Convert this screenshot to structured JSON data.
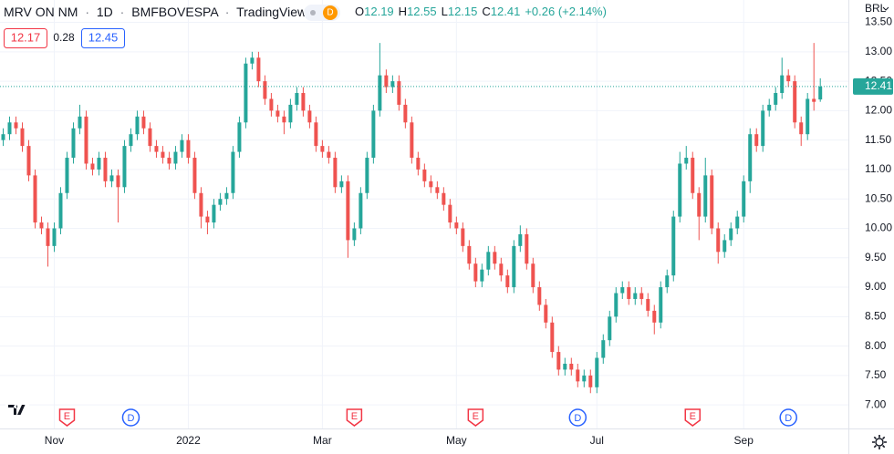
{
  "header": {
    "title_parts": [
      "MRV ON NM",
      "1D",
      "BMFBOVESPA",
      "TradingView"
    ],
    "separator": "·",
    "badge": "D",
    "change": "+0.26 (+2.14%)"
  },
  "quote": {
    "bid": 12.17,
    "spread": 0.28,
    "ask": 12.45
  },
  "chart_data": {
    "type": "candlestick",
    "currency": "BRL",
    "ohlc_letters": [
      "O",
      "H",
      "L",
      "C"
    ],
    "up_color": "#26a69a",
    "down_color": "#ef5350",
    "grid": true,
    "last_price_line": true,
    "open": [
      11.5,
      11.6,
      11.8,
      11.7,
      11.4,
      10.9,
      10.1,
      10.0,
      9.7,
      10.0,
      10.6,
      11.2,
      11.7,
      11.9,
      11.1,
      11.0,
      11.2,
      10.8,
      10.9,
      10.7,
      11.4,
      11.6,
      11.9,
      11.7,
      11.4,
      11.3,
      11.2,
      11.1,
      11.3,
      11.5,
      11.2,
      10.6,
      10.2,
      10.1,
      10.4,
      10.5,
      10.6,
      11.3,
      11.8,
      12.8,
      12.9,
      12.5,
      12.2,
      12.0,
      11.9,
      11.8,
      12.1,
      12.3,
      12.0,
      11.8,
      11.4,
      11.3,
      11.2,
      10.7,
      10.8,
      9.8,
      10.0,
      10.6,
      11.2,
      12.0,
      12.6,
      12.4,
      12.5,
      12.1,
      11.8,
      11.2,
      11.0,
      10.8,
      10.7,
      10.6,
      10.4,
      10.1,
      10.0,
      9.7,
      9.4,
      9.1,
      9.3,
      9.6,
      9.4,
      9.2,
      9.0,
      9.7,
      9.9,
      9.4,
      9.0,
      8.7,
      8.4,
      7.9,
      7.6,
      7.7,
      7.6,
      7.4,
      7.5,
      7.3,
      7.8,
      8.1,
      8.5,
      8.9,
      9.0,
      8.8,
      8.9,
      8.8,
      8.6,
      8.4,
      9.0,
      9.2,
      10.2,
      11.1,
      11.2,
      10.6,
      10.2,
      10.9,
      10.0,
      9.6,
      9.8,
      10.0,
      10.2,
      10.8,
      11.6,
      11.4,
      12.0,
      12.1,
      12.3,
      12.6,
      12.5,
      11.8,
      11.6,
      12.2,
      12.19
    ],
    "high": [
      11.7,
      11.9,
      11.9,
      11.8,
      11.5,
      11.0,
      10.2,
      10.1,
      10.1,
      10.7,
      11.3,
      11.8,
      12.1,
      12.0,
      11.2,
      11.3,
      11.3,
      11.0,
      11.0,
      11.5,
      11.7,
      12.0,
      12.0,
      11.8,
      11.5,
      11.4,
      11.3,
      11.4,
      11.6,
      11.6,
      11.3,
      10.7,
      10.3,
      10.5,
      10.6,
      10.7,
      11.4,
      11.9,
      12.9,
      13.0,
      13.0,
      12.6,
      12.3,
      12.1,
      12.0,
      12.2,
      12.4,
      12.4,
      12.1,
      11.9,
      11.5,
      11.4,
      11.3,
      10.9,
      10.9,
      10.1,
      10.7,
      11.3,
      12.1,
      13.15,
      12.7,
      12.6,
      12.6,
      12.2,
      11.9,
      11.3,
      11.1,
      10.9,
      10.8,
      10.7,
      10.5,
      10.2,
      10.1,
      9.8,
      9.5,
      9.4,
      9.7,
      9.7,
      9.5,
      9.3,
      9.8,
      10.05,
      10.0,
      9.5,
      9.1,
      8.8,
      8.5,
      8.0,
      7.8,
      7.8,
      7.7,
      7.6,
      7.6,
      7.9,
      8.2,
      8.6,
      9.0,
      9.1,
      9.1,
      9.0,
      9.0,
      8.9,
      8.7,
      9.1,
      9.3,
      10.3,
      11.3,
      11.4,
      11.3,
      10.7,
      11.2,
      11.0,
      10.1,
      9.9,
      10.1,
      10.3,
      10.9,
      11.7,
      11.7,
      12.1,
      12.2,
      12.4,
      12.9,
      12.7,
      12.6,
      11.9,
      12.3,
      13.15,
      12.55
    ],
    "low": [
      11.4,
      11.5,
      11.6,
      11.3,
      10.8,
      10.0,
      9.9,
      9.35,
      9.6,
      9.9,
      10.5,
      11.1,
      11.6,
      11.0,
      10.9,
      10.9,
      10.7,
      10.7,
      10.1,
      10.6,
      11.3,
      11.5,
      11.6,
      11.3,
      11.2,
      11.1,
      11.0,
      11.0,
      11.2,
      11.1,
      10.5,
      10.0,
      9.9,
      10.0,
      10.3,
      10.4,
      10.5,
      11.2,
      11.7,
      12.7,
      12.4,
      12.1,
      11.9,
      11.8,
      11.6,
      11.7,
      12.0,
      11.9,
      11.7,
      11.3,
      11.2,
      11.1,
      10.6,
      10.6,
      9.5,
      9.7,
      9.9,
      10.5,
      11.1,
      11.9,
      12.3,
      12.3,
      12.0,
      11.7,
      11.1,
      10.9,
      10.7,
      10.6,
      10.5,
      10.3,
      10.0,
      9.9,
      9.6,
      9.3,
      9.0,
      9.0,
      9.2,
      9.3,
      9.1,
      8.9,
      8.9,
      9.6,
      9.3,
      8.9,
      8.6,
      8.3,
      7.8,
      7.5,
      7.5,
      7.5,
      7.3,
      7.3,
      7.2,
      7.2,
      7.7,
      8.0,
      8.4,
      8.8,
      8.7,
      8.7,
      8.7,
      8.5,
      8.2,
      8.3,
      8.9,
      9.1,
      10.1,
      11.0,
      10.5,
      9.8,
      10.1,
      9.9,
      9.4,
      9.5,
      9.7,
      9.9,
      10.1,
      10.6,
      11.3,
      11.3,
      11.9,
      12.0,
      12.2,
      12.4,
      11.7,
      11.4,
      11.5,
      12.0,
      12.15
    ],
    "close": [
      11.6,
      11.8,
      11.7,
      11.4,
      10.9,
      10.1,
      10.0,
      9.7,
      10.0,
      10.6,
      11.2,
      11.7,
      11.9,
      11.1,
      11.0,
      11.2,
      10.8,
      10.9,
      10.7,
      11.4,
      11.6,
      11.9,
      11.7,
      11.4,
      11.3,
      11.2,
      11.1,
      11.3,
      11.5,
      11.2,
      10.6,
      10.2,
      10.1,
      10.4,
      10.5,
      10.6,
      11.3,
      11.8,
      12.8,
      12.9,
      12.5,
      12.2,
      12.0,
      11.9,
      11.8,
      12.1,
      12.3,
      12.0,
      11.8,
      11.4,
      11.3,
      11.2,
      10.7,
      10.8,
      9.8,
      10.0,
      10.6,
      11.2,
      12.0,
      12.6,
      12.4,
      12.5,
      12.1,
      11.8,
      11.2,
      11.0,
      10.8,
      10.7,
      10.6,
      10.4,
      10.1,
      10.0,
      9.7,
      9.4,
      9.1,
      9.3,
      9.6,
      9.4,
      9.2,
      9.0,
      9.7,
      9.9,
      9.4,
      9.0,
      8.7,
      8.4,
      7.9,
      7.6,
      7.7,
      7.6,
      7.4,
      7.5,
      7.3,
      7.8,
      8.1,
      8.5,
      8.9,
      9.0,
      8.8,
      8.9,
      8.8,
      8.6,
      8.4,
      9.0,
      9.2,
      10.2,
      11.1,
      11.2,
      10.6,
      10.2,
      10.9,
      10.0,
      9.6,
      9.8,
      10.0,
      10.2,
      10.8,
      11.6,
      11.4,
      12.0,
      12.1,
      12.3,
      12.6,
      12.5,
      11.8,
      11.6,
      12.2,
      12.15,
      12.41
    ],
    "xlim": [
      -0.5,
      132.4
    ],
    "xticks": [
      {
        "value": 8,
        "label": "Nov"
      },
      {
        "value": 29,
        "label": "2022"
      },
      {
        "value": 50,
        "label": "Mar"
      },
      {
        "value": 71,
        "label": "May"
      },
      {
        "value": 93,
        "label": "Jul"
      },
      {
        "value": 116,
        "label": "Sep"
      }
    ],
    "ylim": [
      6.6,
      13.88
    ],
    "yticks": [
      {
        "value": 7,
        "label": "7.00"
      },
      {
        "value": 7.5,
        "label": "7.50"
      },
      {
        "value": 8,
        "label": "8.00"
      },
      {
        "value": 8.5,
        "label": "8.50"
      },
      {
        "value": 9,
        "label": "9.00"
      },
      {
        "value": 9.5,
        "label": "9.50"
      },
      {
        "value": 10,
        "label": "10.00"
      },
      {
        "value": 10.5,
        "label": "10.50"
      },
      {
        "value": 11,
        "label": "11.00"
      },
      {
        "value": 11.5,
        "label": "11.50"
      },
      {
        "value": 12,
        "label": "12.00"
      },
      {
        "value": 12.5,
        "label": "12.50"
      },
      {
        "value": 13,
        "label": "13.00"
      },
      {
        "value": 13.5,
        "label": "13.50"
      }
    ],
    "events": [
      {
        "label": "E",
        "x": 10
      },
      {
        "label": "D",
        "x": 20
      },
      {
        "label": "E",
        "x": 55
      },
      {
        "label": "E",
        "x": 74
      },
      {
        "label": "D",
        "x": 90
      },
      {
        "label": "E",
        "x": 108
      },
      {
        "label": "D",
        "x": 123
      }
    ]
  }
}
